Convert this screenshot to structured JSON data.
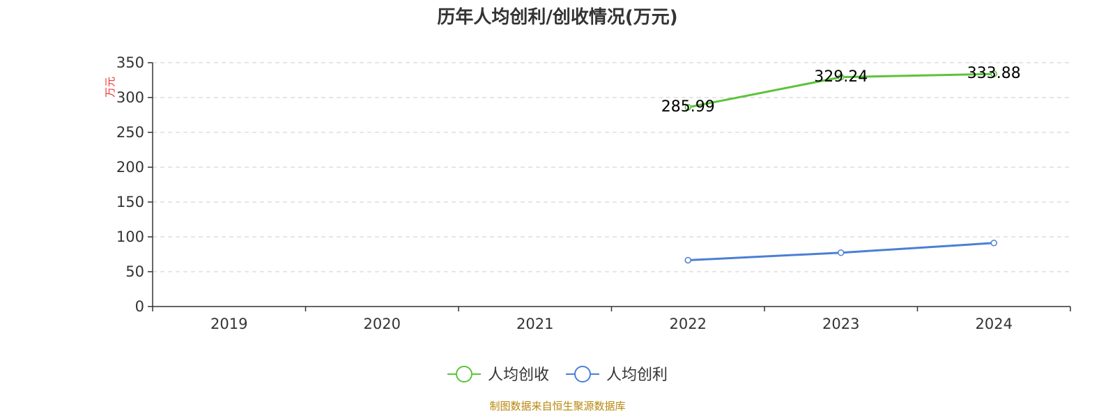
{
  "chart_data": {
    "type": "line",
    "title": "历年人均创利/创收情况(万元)",
    "ylabel": "万元",
    "xlabel": "",
    "categories": [
      "2019",
      "2020",
      "2021",
      "2022",
      "2023",
      "2024"
    ],
    "ylim": [
      0,
      350
    ],
    "yticks": [
      0,
      50,
      100,
      150,
      200,
      250,
      300,
      350
    ],
    "grid": true,
    "legend_position": "bottom",
    "series": [
      {
        "name": "人均创收",
        "color": "#5cc33a",
        "values": [
          null,
          null,
          null,
          285.99,
          329.24,
          333.88
        ],
        "value_labels": [
          "",
          "",
          "",
          "285.99",
          "329.24",
          "333.88"
        ]
      },
      {
        "name": "人均创利",
        "color": "#4a7fd6",
        "values": [
          null,
          null,
          null,
          66.5,
          77.3,
          91.2
        ]
      }
    ]
  },
  "source_note": "制图数据来自恒生聚源数据库"
}
